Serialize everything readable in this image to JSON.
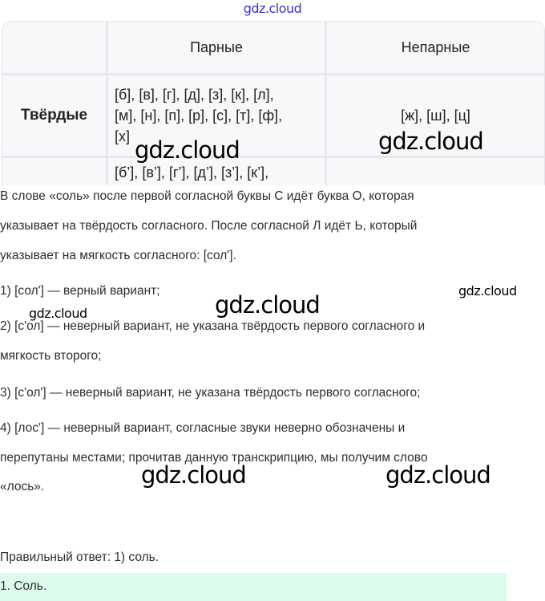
{
  "watermark_top": "gdz.cloud",
  "table": {
    "headers": [
      "",
      "Парные",
      "Непарные"
    ],
    "rows": [
      {
        "label": "Твёрдые",
        "paired_lines": [
          "[б], [в], [г], [д], [з], [к], [л],",
          "[м], [н], [п], [р], [с], [т], [ф],",
          "[х]"
        ],
        "unpaired": "[ж], [ш], [ц]"
      },
      {
        "label": "",
        "paired_lines": [
          "[б’], [в’], [г’], [д’], [з’], [к’],"
        ],
        "unpaired": ""
      }
    ]
  },
  "text_lines": [
    "В слове «соль» после первой согласной буквы С идёт буква О, которая",
    "указывает на твёрдость согласного. После согласной Л идёт Ь, который",
    "указывает на мягкость согласного: [сол'].",
    "1) [сол'] — верный вариант;",
    "2) [с'ол] — неверный вариант, не указана твёрдость первого согласного и",
    "мягкость второго;",
    "3) [с'ол'] — неверный вариант, не указана твёрдость первого согласного;",
    "4) [лос'] — неверный вариант, согласные звуки неверно обозначены и",
    "перепутаны местами; прочитав данную транскрипцию, мы получим слово",
    "«лось».",
    "Правильный ответ: 1) соль."
  ],
  "answer_box": "1. Соль.",
  "watermark": "gdz.cloud",
  "colors": {
    "answer_bg": "#dcfbea",
    "watermark_top": "#3434c8"
  }
}
